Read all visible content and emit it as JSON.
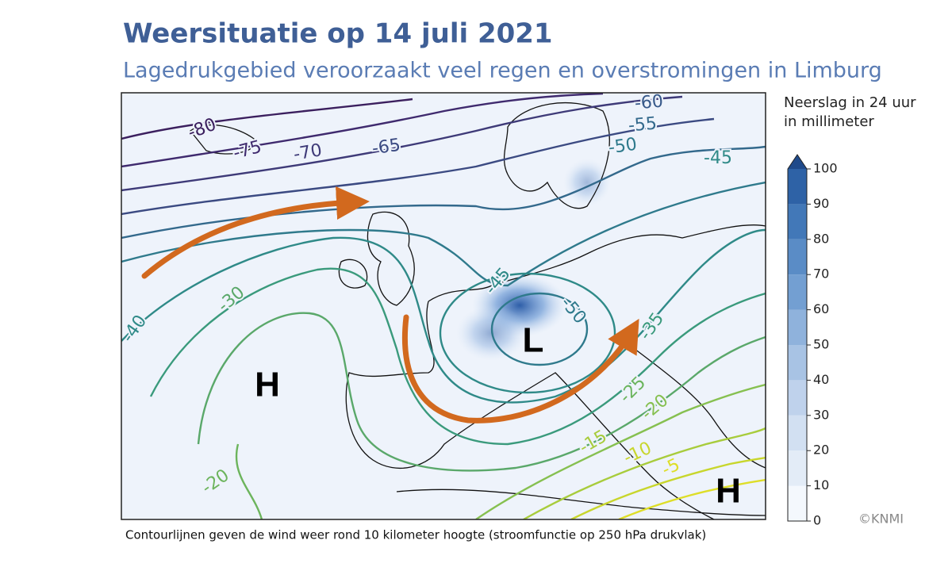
{
  "header": {
    "title": "Weersituatie op 14 juli 2021",
    "subtitle": "Lagedrukgebied veroorzaakt veel regen en overstromingen in Limburg"
  },
  "map": {
    "contour_labels": [
      {
        "text": "-80",
        "color": "#3b1f5e"
      },
      {
        "text": "-75",
        "color": "#3f2a6e"
      },
      {
        "text": "-70",
        "color": "#3e3a78"
      },
      {
        "text": "-65",
        "color": "#3b4a82"
      },
      {
        "text": "-60",
        "color": "#37598a"
      },
      {
        "text": "-55",
        "color": "#33698c"
      },
      {
        "text": "-50",
        "color": "#2f7a8c"
      },
      {
        "text": "-45",
        "color": "#2f8a88"
      },
      {
        "text": "-40",
        "color": "#2f8a88"
      },
      {
        "text": "-30",
        "color": "#5aa86a"
      },
      {
        "text": "-20",
        "color": "#6cb45c"
      },
      {
        "text": "-45",
        "color": "#2f8a88"
      },
      {
        "text": "-50",
        "color": "#2f7a8c"
      },
      {
        "text": "-35",
        "color": "#3a9a7c"
      },
      {
        "text": "-25",
        "color": "#6ab45c"
      },
      {
        "text": "-20",
        "color": "#86c050"
      },
      {
        "text": "-15",
        "color": "#a8cc3c"
      },
      {
        "text": "-10",
        "color": "#c8d62c"
      },
      {
        "text": "-5",
        "color": "#dede28"
      }
    ],
    "pressure_labels": [
      "H",
      "L",
      "H"
    ]
  },
  "colorbar": {
    "title_lines": [
      "Neerslag in 24 uur",
      "in millimeter"
    ],
    "range": [
      0,
      100
    ],
    "ticks": [
      0,
      10,
      20,
      30,
      40,
      50,
      60,
      70,
      80,
      90,
      100
    ],
    "colors": [
      "#f4f8fd",
      "#e3ecf7",
      "#d2e0f2",
      "#bfd2ec",
      "#a8c3e4",
      "#8fb2dc",
      "#739fd2",
      "#5a8cc6",
      "#4278b8",
      "#2e62a6"
    ],
    "extend_color": "#1f4a8a"
  },
  "caption": "Contourlijnen geven de wind weer rond 10 kilometer hoogte (stroomfunctie op 250 hPa drukvlak)",
  "credit": "©KNMI"
}
